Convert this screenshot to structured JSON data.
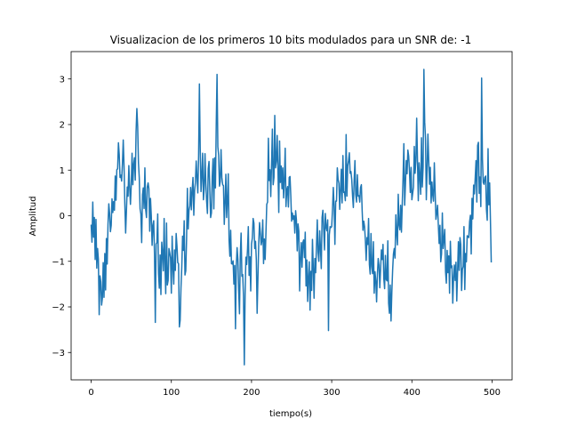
{
  "chart_data": {
    "type": "line",
    "title": "Visualizacion de los primeros 10 bits modulados para un SNR de: -1",
    "xlabel": "tiempo(s)",
    "ylabel": "Amplitud",
    "xlim": [
      -25,
      525
    ],
    "ylim": [
      -3.6,
      3.6
    ],
    "xticks": [
      0,
      100,
      200,
      300,
      400,
      500
    ],
    "yticks": [
      -3,
      -2,
      -1,
      0,
      1,
      2,
      3
    ],
    "xtick_labels": [
      "0",
      "100",
      "200",
      "300",
      "400",
      "500"
    ],
    "ytick_labels": [
      "−3",
      "−2",
      "−1",
      "0",
      "1",
      "2",
      "3"
    ],
    "grid": false,
    "series": [
      {
        "color": "#1f77b4",
        "x": [
          0,
          1,
          2,
          3,
          4,
          5,
          6,
          7,
          8,
          9,
          10,
          11,
          12,
          13,
          14,
          15,
          16,
          17,
          18,
          19,
          20,
          21,
          22,
          23,
          24,
          25,
          26,
          27,
          28,
          29,
          30,
          31,
          32,
          33,
          34,
          35,
          36,
          37,
          38,
          39,
          40,
          41,
          42,
          43,
          44,
          45,
          46,
          47,
          48,
          49,
          50,
          51,
          52,
          53,
          54,
          55,
          56,
          57,
          58,
          59,
          60,
          61,
          62,
          63,
          64,
          65,
          66,
          67,
          68,
          69,
          70,
          71,
          72,
          73,
          74,
          75,
          76,
          77,
          78,
          79,
          80,
          81,
          82,
          83,
          84,
          85,
          86,
          87,
          88,
          89,
          90,
          91,
          92,
          93,
          94,
          95,
          96,
          97,
          98,
          99,
          100,
          101,
          102,
          103,
          104,
          105,
          106,
          107,
          108,
          109,
          110,
          111,
          112,
          113,
          114,
          115,
          116,
          117,
          118,
          119,
          120,
          121,
          122,
          123,
          124,
          125,
          126,
          127,
          128,
          129,
          130,
          131,
          132,
          133,
          134,
          135,
          136,
          137,
          138,
          139,
          140,
          141,
          142,
          143,
          144,
          145,
          146,
          147,
          148,
          149,
          150,
          151,
          152,
          153,
          154,
          155,
          156,
          157,
          158,
          159,
          160,
          161,
          162,
          163,
          164,
          165,
          166,
          167,
          168,
          169,
          170,
          171,
          172,
          173,
          174,
          175,
          176,
          177,
          178,
          179,
          180,
          181,
          182,
          183,
          184,
          185,
          186,
          187,
          188,
          189,
          190,
          191,
          192,
          193,
          194,
          195,
          196,
          197,
          198,
          199,
          200,
          201,
          202,
          203,
          204,
          205,
          206,
          207,
          208,
          209,
          210,
          211,
          212,
          213,
          214,
          215,
          216,
          217,
          218,
          219,
          220,
          221,
          222,
          223,
          224,
          225,
          226,
          227,
          228,
          229,
          230,
          231,
          232,
          233,
          234,
          235,
          236,
          237,
          238,
          239,
          240,
          241,
          242,
          243,
          244,
          245,
          246,
          247,
          248,
          249,
          250,
          251,
          252,
          253,
          254,
          255,
          256,
          257,
          258,
          259,
          260,
          261,
          262,
          263,
          264,
          265,
          266,
          267,
          268,
          269,
          270,
          271,
          272,
          273,
          274,
          275,
          276,
          277,
          278,
          279,
          280,
          281,
          282,
          283,
          284,
          285,
          286,
          287,
          288,
          289,
          290,
          291,
          292,
          293,
          294,
          295,
          296,
          297,
          298,
          299,
          300,
          301,
          302,
          303,
          304,
          305,
          306,
          307,
          308,
          309,
          310,
          311,
          312,
          313,
          314,
          315,
          316,
          317,
          318,
          319,
          320,
          321,
          322,
          323,
          324,
          325,
          326,
          327,
          328,
          329,
          330,
          331,
          332,
          333,
          334,
          335,
          336,
          337,
          338,
          339,
          340,
          341,
          342,
          343,
          344,
          345,
          346,
          347,
          348,
          349,
          350,
          351,
          352,
          353,
          354,
          355,
          356,
          357,
          358,
          359,
          360,
          361,
          362,
          363,
          364,
          365,
          366,
          367,
          368,
          369,
          370,
          371,
          372,
          373,
          374,
          375,
          376,
          377,
          378,
          379,
          380,
          381,
          382,
          383,
          384,
          385,
          386,
          387,
          388,
          389,
          390,
          391,
          392,
          393,
          394,
          395,
          396,
          397,
          398,
          399,
          400,
          401,
          402,
          403,
          404,
          405,
          406,
          407,
          408,
          409,
          410,
          411,
          412,
          413,
          414,
          415,
          416,
          417,
          418,
          419,
          420,
          421,
          422,
          423,
          424,
          425,
          426,
          427,
          428,
          429,
          430,
          431,
          432,
          433,
          434,
          435,
          436,
          437,
          438,
          439,
          440,
          441,
          442,
          443,
          444,
          445,
          446,
          447,
          448,
          449,
          450,
          451,
          452,
          453,
          454,
          455,
          456,
          457,
          458,
          459,
          460,
          461,
          462,
          463,
          464,
          465,
          466,
          467,
          468,
          469,
          470,
          471,
          472,
          473,
          474,
          475,
          476,
          477,
          478,
          479,
          480,
          481,
          482,
          483,
          484,
          485,
          486,
          487,
          488,
          489,
          490,
          491,
          492,
          493,
          494,
          495,
          496,
          497,
          498,
          499
        ],
        "y": [
          -0.21,
          -0.58,
          0.3,
          -0.47,
          -0.04,
          -0.96,
          -0.08,
          -1.15,
          -0.72,
          -0.96,
          -2.17,
          -1.32,
          -1.45,
          -1.96,
          -1.8,
          -1.03,
          -1.79,
          -0.83,
          -1.63,
          -0.5,
          -1.06,
          -0.19,
          0.26,
          0.04,
          -0.35,
          -0.21,
          0.37,
          0.07,
          0.31,
          0.12,
          0.87,
          0.34,
          1.01,
          1.03,
          1.6,
          1.34,
          0.84,
          0.89,
          0.76,
          1.14,
          1.66,
          1.09,
          0.25,
          -0.38,
          0.12,
          0.63,
          0.43,
          1.1,
          0.62,
          0.25,
          0.68,
          1.37,
          0.68,
          1.13,
          1.27,
          0.78,
          1.84,
          2.35,
          1.96,
          1.16,
          0.83,
          0.15,
          0.04,
          -0.59,
          0.46,
          0.61,
          0.16,
          1.05,
          0.13,
          -0.04,
          0.63,
          0.72,
          0.59,
          -0.34,
          0.38,
          -0.01,
          -0.65,
          -0.21,
          -0.11,
          -0.86,
          -2.34,
          -0.62,
          -0.59,
          0.04,
          -1.27,
          -1.59,
          -0.86,
          -1.73,
          -0.58,
          -0.81,
          -1.21,
          -0.06,
          -1.03,
          -1.71,
          -0.16,
          -1.52,
          -1.42,
          -0.72,
          -0.81,
          -0.93,
          -1.7,
          -0.45,
          -1.14,
          -1.5,
          -0.75,
          -1.2,
          -0.39,
          -0.66,
          -1.03,
          -1.05,
          -2.44,
          -2.29,
          -1.59,
          -1.14,
          -0.45,
          -0.76,
          -0.11,
          -1.3,
          -1.21,
          -0.51,
          0.6,
          -0.29,
          0.12,
          0.21,
          0.62,
          0.13,
          0.56,
          0.84,
          0.01,
          0.55,
          0.73,
          1.2,
          0.83,
          0.5,
          1.3,
          2.89,
          1.49,
          0.53,
          0.87,
          1.37,
          0.35,
          0.59,
          1.36,
          0.7,
          0.32,
          0.05,
          1.03,
          1.19,
          0.55,
          -0.04,
          0.06,
          0.86,
          1.25,
          0.15,
          1.27,
          0.61,
          2.01,
          3.1,
          1.51,
          1.33,
          0.65,
          0.75,
          1.45,
          0.84,
          0.68,
          0.66,
          -0.19,
          0.28,
          0.91,
          -0.04,
          0.33,
          0.92,
          -0.54,
          -0.89,
          -0.32,
          -1.05,
          -1.06,
          -0.99,
          -1.5,
          -1.09,
          -2.48,
          -1.11,
          -0.7,
          -0.96,
          -1.65,
          -2.15,
          -0.87,
          -0.38,
          -1.33,
          -1.29,
          -1.77,
          -3.27,
          -1.73,
          -0.91,
          -1.07,
          -0.74,
          -0.24,
          -1.31,
          -0.9,
          -1.65,
          -0.62,
          -0.49,
          -0.06,
          -0.16,
          -0.72,
          -0.56,
          -0.97,
          -2.14,
          -1.36,
          -0.6,
          -0.15,
          -0.38,
          -0.64,
          -0.55,
          -0.09,
          -1.05,
          -0.51,
          -0.96,
          -0.37,
          0.25,
          0.3,
          1.7,
          0.77,
          1.01,
          0.42,
          1.13,
          1.9,
          0.68,
          0.84,
          2.2,
          1.05,
          1.2,
          1.76,
          1.0,
          0.07,
          1.64,
          0.73,
          1.09,
          0.59,
          1.05,
          0.39,
          0.81,
          1.48,
          0.2,
          0.56,
          0.64,
          0.19,
          0.84,
          0.86,
          0.43,
          -0.12,
          0.06,
          -0.08,
          0.0,
          -0.38,
          0.11,
          -0.09,
          -0.77,
          -0.18,
          -0.34,
          -1.65,
          -0.97,
          -0.59,
          -1.13,
          -0.59,
          -0.53,
          -0.92,
          -0.36,
          -1.54,
          -0.97,
          -1.88,
          -1.35,
          -1.01,
          -2.07,
          -1.22,
          -1.64,
          -0.52,
          -1.14,
          -1.81,
          -0.94,
          -1.25,
          -0.68,
          -0.09,
          -0.8,
          -1.0,
          -0.33,
          -0.72,
          -1.16,
          -0.04,
          0.12,
          -0.3,
          -0.75,
          0.05,
          -0.25,
          -0.33,
          -0.09,
          -2.52,
          -0.42,
          -0.24,
          -0.26,
          -0.24,
          0.14,
          0.62,
          0.2,
          -0.63,
          0.32,
          0.32,
          1.05,
          0.79,
          0.71,
          0.14,
          0.57,
          1.02,
          0.28,
          1.32,
          0.51,
          0.52,
          0.33,
          1.78,
          0.43,
          1.09,
          1.21,
          1.38,
          0.93,
          0.97,
          0.79,
          0.44,
          0.18,
          0.77,
          1.21,
          0.46,
          0.3,
          0.9,
          0.43,
          0.44,
          0.3,
          0.62,
          0.68,
          0.11,
          -0.32,
          -0.12,
          -0.24,
          -0.54,
          -0.98,
          -0.48,
          -0.63,
          -0.06,
          -1.07,
          -1.28,
          -0.39,
          -1.11,
          -1.27,
          -0.57,
          -1.7,
          -1.23,
          -1.42,
          -1.89,
          -1.29,
          -0.94,
          -1.09,
          -1.58,
          -1.16,
          -0.75,
          -0.96,
          -0.63,
          -1.38,
          -1.6,
          -0.87,
          -1.4,
          -1.43,
          -0.55,
          -1.92,
          -2.14,
          -1.52,
          -2.31,
          -1.68,
          -1.19,
          -0.84,
          -0.72,
          -0.93,
          0.02,
          -0.38,
          -0.64,
          0.47,
          -0.2,
          -0.31,
          0.23,
          -0.36,
          0.26,
          0.82,
          1.58,
          0.23,
          0.7,
          1.21,
          0.92,
          1.44,
          1.31,
          0.98,
          0.51,
          1.06,
          0.35,
          0.49,
          0.63,
          1.52,
          0.93,
          1.2,
          2.14,
          1.21,
          0.33,
          1.16,
          0.86,
          0.47,
          1.71,
          0.63,
          1.07,
          3.21,
          2.05,
          1.7,
          0.35,
          1.01,
          1.79,
          1.22,
          0.69,
          1.06,
          0.28,
          0.74,
          0.46,
          0.32,
          1.16,
          0.52,
          -0.08,
          0.06,
          0.23,
          -0.21,
          -0.61,
          -0.21,
          -1.01,
          -0.84,
          0.06,
          -0.72,
          -0.51,
          -0.3,
          -1.23,
          -1.48,
          -0.76,
          -1.25,
          -0.88,
          -1.7,
          -0.56,
          -1.14,
          -1.1,
          -1.92,
          -1.37,
          -1.08,
          -1.42,
          -1.02,
          -1.87,
          -1.24,
          -0.57,
          -1.2,
          -0.48,
          -0.63,
          -1.64,
          -1.18,
          -1.11,
          -0.24,
          -1.62,
          -0.83,
          -1.01,
          -0.44,
          -0.46,
          -0.48,
          -0.13,
          0.01,
          -0.84,
          0.38,
          -0.07,
          0.67,
          0.48,
          0.83,
          1.21,
          0.3,
          1.54,
          1.61,
          0.49,
          0.85,
          0.2,
          3.02,
          1.25,
          0.73,
          0.69,
          0.84,
          0.87,
          0.14,
          -0.1,
          1.47,
          0.24,
          0.72,
          -0.11,
          -1.01
        ]
      }
    ]
  }
}
